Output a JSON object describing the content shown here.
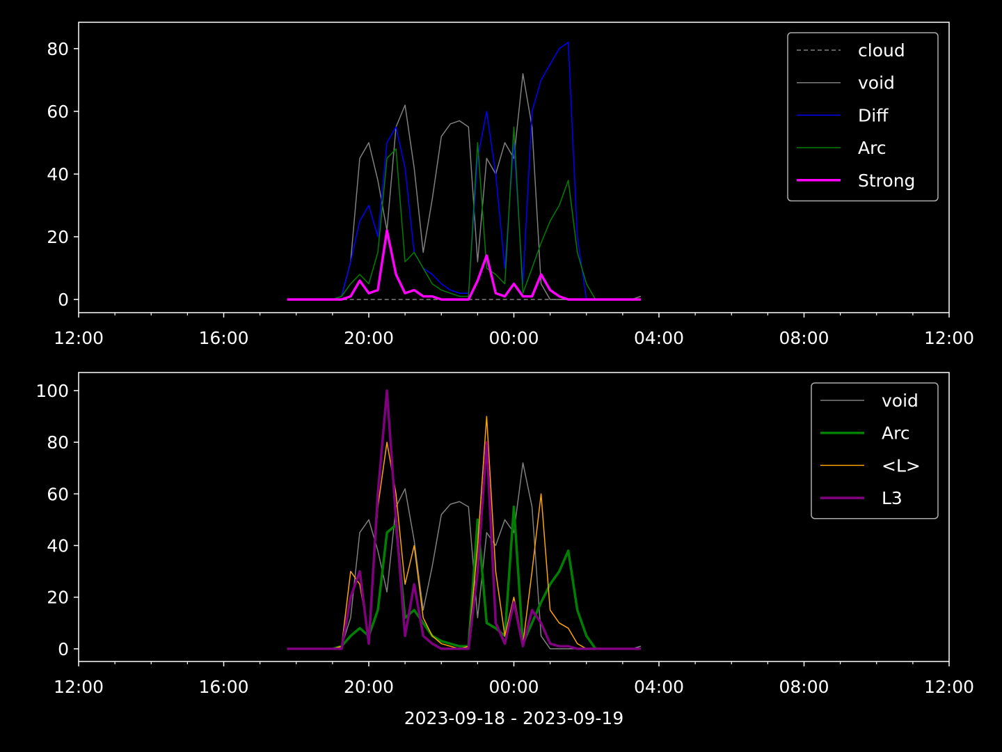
{
  "chart_data": [
    {
      "type": "line",
      "x": [
        17.75,
        18,
        18.25,
        18.5,
        18.75,
        19,
        19.25,
        19.5,
        19.75,
        20,
        20.25,
        20.5,
        20.75,
        21,
        21.25,
        21.5,
        21.75,
        22,
        22.25,
        22.5,
        22.75,
        23,
        23.25,
        23.5,
        23.75,
        24,
        24.25,
        24.5,
        24.75,
        25,
        25.25,
        25.5,
        25.75,
        26,
        26.25,
        26.5,
        26.75,
        27,
        27.25,
        27.5
      ],
      "xlim": [
        12,
        36
      ],
      "xticks": [
        {
          "value": 12,
          "label": "12:00"
        },
        {
          "value": 16,
          "label": "16:00"
        },
        {
          "value": 20,
          "label": "20:00"
        },
        {
          "value": 24,
          "label": "00:00"
        },
        {
          "value": 28,
          "label": "04:00"
        },
        {
          "value": 32,
          "label": "08:00"
        },
        {
          "value": 36,
          "label": "12:00"
        }
      ],
      "xminorticks": [
        13,
        14,
        15,
        17,
        18,
        19,
        21,
        22,
        23,
        25,
        26,
        27,
        29,
        30,
        31,
        33,
        34,
        35
      ],
      "ylim": [
        -4.2,
        88.4
      ],
      "yticks": [
        0,
        20,
        40,
        60,
        80
      ],
      "legend": "upper right",
      "series": [
        {
          "name": "cloud",
          "color": "#808080",
          "dashed": true,
          "linewidth": 1.5,
          "values": [
            0,
            0,
            0,
            0,
            0,
            0,
            0,
            0,
            0,
            0,
            0,
            0,
            0,
            0,
            0,
            0,
            0,
            0,
            0,
            0,
            0,
            0,
            0,
            0,
            0,
            0,
            0,
            0,
            0,
            0,
            0,
            0,
            0,
            0,
            0,
            0,
            0,
            0,
            0,
            0
          ]
        },
        {
          "name": "void",
          "color": "#808080",
          "linewidth": 1.5,
          "values": [
            0,
            0,
            0,
            0,
            0,
            0,
            1,
            12,
            45,
            50,
            38,
            22,
            55,
            62,
            42,
            15,
            32,
            52,
            56,
            57,
            55,
            12,
            45,
            40,
            50,
            45,
            72,
            55,
            5,
            0,
            0,
            0,
            0,
            0,
            0,
            0,
            0,
            0,
            0,
            1
          ]
        },
        {
          "name": "Diff",
          "color": "#0000ff",
          "linewidth": 1.5,
          "values": [
            0,
            0,
            0,
            0,
            0,
            0,
            1,
            12,
            25,
            30,
            20,
            50,
            55,
            42,
            15,
            10,
            8,
            5,
            3,
            2,
            2,
            45,
            60,
            40,
            10,
            50,
            5,
            60,
            70,
            75,
            80,
            82,
            20,
            0,
            0,
            0,
            0,
            0,
            0,
            0
          ]
        },
        {
          "name": "Arc",
          "color": "#008000",
          "linewidth": 1.5,
          "values": [
            0,
            0,
            0,
            0,
            0,
            0,
            1,
            5,
            8,
            5,
            15,
            45,
            48,
            12,
            15,
            10,
            5,
            3,
            2,
            1,
            1,
            50,
            10,
            8,
            5,
            55,
            2,
            10,
            18,
            25,
            30,
            38,
            15,
            5,
            0,
            0,
            0,
            0,
            0,
            0
          ]
        },
        {
          "name": "Strong",
          "color": "#ff00ff",
          "linewidth": 3.5,
          "values": [
            0,
            0,
            0,
            0,
            0,
            0,
            0,
            1,
            6,
            2,
            3,
            22,
            8,
            2,
            3,
            1,
            1,
            0,
            0,
            0,
            0,
            6,
            14,
            2,
            1,
            5,
            1,
            1,
            8,
            3,
            1,
            0,
            0,
            0,
            0,
            0,
            0,
            0,
            0,
            0
          ]
        }
      ]
    },
    {
      "type": "line",
      "x": [
        17.75,
        18,
        18.25,
        18.5,
        18.75,
        19,
        19.25,
        19.5,
        19.75,
        20,
        20.25,
        20.5,
        20.75,
        21,
        21.25,
        21.5,
        21.75,
        22,
        22.25,
        22.5,
        22.75,
        23,
        23.25,
        23.5,
        23.75,
        24,
        24.25,
        24.5,
        24.75,
        25,
        25.25,
        25.5,
        25.75,
        26,
        26.25,
        26.5,
        26.75,
        27,
        27.25,
        27.5
      ],
      "xlim": [
        12,
        36
      ],
      "xticks": [
        {
          "value": 12,
          "label": "12:00"
        },
        {
          "value": 16,
          "label": "16:00"
        },
        {
          "value": 20,
          "label": "20:00"
        },
        {
          "value": 24,
          "label": "00:00"
        },
        {
          "value": 28,
          "label": "04:00"
        },
        {
          "value": 32,
          "label": "08:00"
        },
        {
          "value": 36,
          "label": "12:00"
        }
      ],
      "xminorticks": [
        13,
        14,
        15,
        17,
        18,
        19,
        21,
        22,
        23,
        25,
        26,
        27,
        29,
        30,
        31,
        33,
        34,
        35
      ],
      "xlabel": "2023-09-18 - 2023-09-19",
      "ylim": [
        -4.9,
        107
      ],
      "yticks": [
        0,
        20,
        40,
        60,
        80,
        100
      ],
      "legend": "upper right",
      "series": [
        {
          "name": "void",
          "color": "#808080",
          "linewidth": 1.5,
          "values": [
            0,
            0,
            0,
            0,
            0,
            0,
            1,
            12,
            45,
            50,
            38,
            22,
            55,
            62,
            42,
            15,
            32,
            52,
            56,
            57,
            55,
            12,
            45,
            40,
            50,
            45,
            72,
            55,
            5,
            0,
            0,
            0,
            0,
            0,
            0,
            0,
            0,
            0,
            0,
            1
          ]
        },
        {
          "name": "Arc",
          "color": "#008000",
          "linewidth": 3.5,
          "values": [
            0,
            0,
            0,
            0,
            0,
            0,
            1,
            5,
            8,
            5,
            15,
            45,
            48,
            12,
            15,
            10,
            5,
            3,
            2,
            1,
            1,
            50,
            10,
            8,
            5,
            55,
            2,
            10,
            18,
            25,
            30,
            38,
            15,
            5,
            0,
            0,
            0,
            0,
            0,
            0
          ]
        },
        {
          "name": "<L>",
          "color": "#ffa500",
          "linewidth": 1.5,
          "values": [
            0,
            0,
            0,
            0,
            0,
            0,
            1,
            30,
            25,
            5,
            55,
            80,
            60,
            25,
            40,
            12,
            5,
            2,
            1,
            0,
            1,
            40,
            90,
            30,
            5,
            20,
            2,
            30,
            60,
            15,
            10,
            8,
            2,
            0,
            0,
            0,
            0,
            0,
            0,
            0
          ]
        },
        {
          "name": "L3",
          "color": "#800080",
          "linewidth": 3.5,
          "values": [
            0,
            0,
            0,
            0,
            0,
            0,
            0,
            20,
            30,
            2,
            60,
            100,
            50,
            5,
            25,
            5,
            2,
            0,
            0,
            0,
            0,
            30,
            80,
            10,
            2,
            18,
            1,
            15,
            10,
            2,
            1,
            1,
            0,
            0,
            0,
            0,
            0,
            0,
            0,
            0
          ]
        }
      ]
    }
  ]
}
